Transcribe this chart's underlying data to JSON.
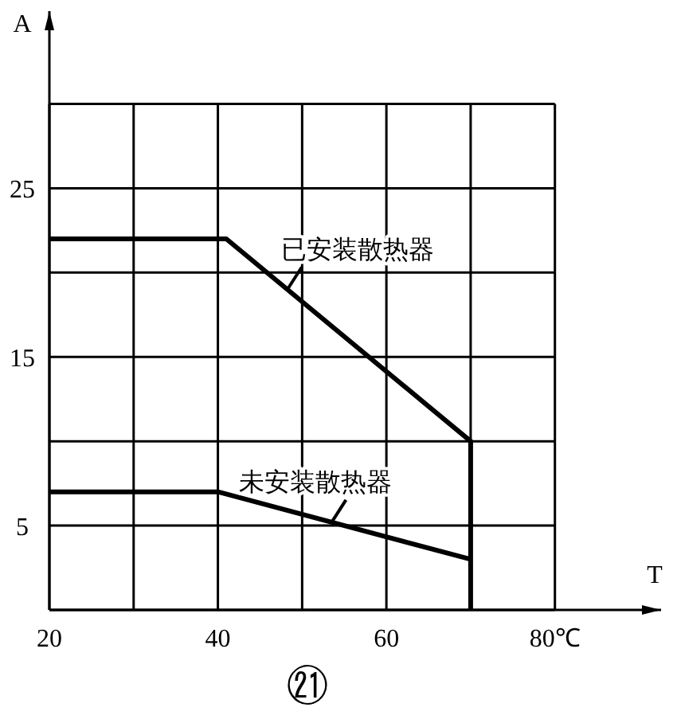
{
  "chart_data": {
    "type": "line",
    "title": "㉑",
    "xlabel": "T",
    "ylabel": "A",
    "xlim": [
      20,
      92.6
    ],
    "ylim": [
      0,
      35.5
    ],
    "xticks": [
      20,
      {
        "value": 30,
        "label": null
      },
      40,
      {
        "value": 50,
        "label": null
      },
      60,
      {
        "value": 70,
        "label": null
      },
      {
        "value": 80,
        "label": "80℃"
      }
    ],
    "yticks": [
      {
        "value": 0,
        "label": null
      },
      5,
      {
        "value": 10,
        "label": null
      },
      15,
      {
        "value": 20,
        "label": null
      },
      25,
      {
        "value": 30,
        "label": null
      }
    ],
    "grid": true,
    "legend": false,
    "marker": "none",
    "line_style": "solid",
    "series": [
      {
        "name": "已安装散热器",
        "color": "#000000",
        "x": [
          20,
          41,
          70,
          70
        ],
        "values": [
          22,
          22,
          10,
          0
        ]
      },
      {
        "name": "未安装散热器",
        "color": "#000000",
        "x": [
          20,
          40,
          70
        ],
        "values": [
          7,
          7,
          3
        ]
      }
    ]
  }
}
